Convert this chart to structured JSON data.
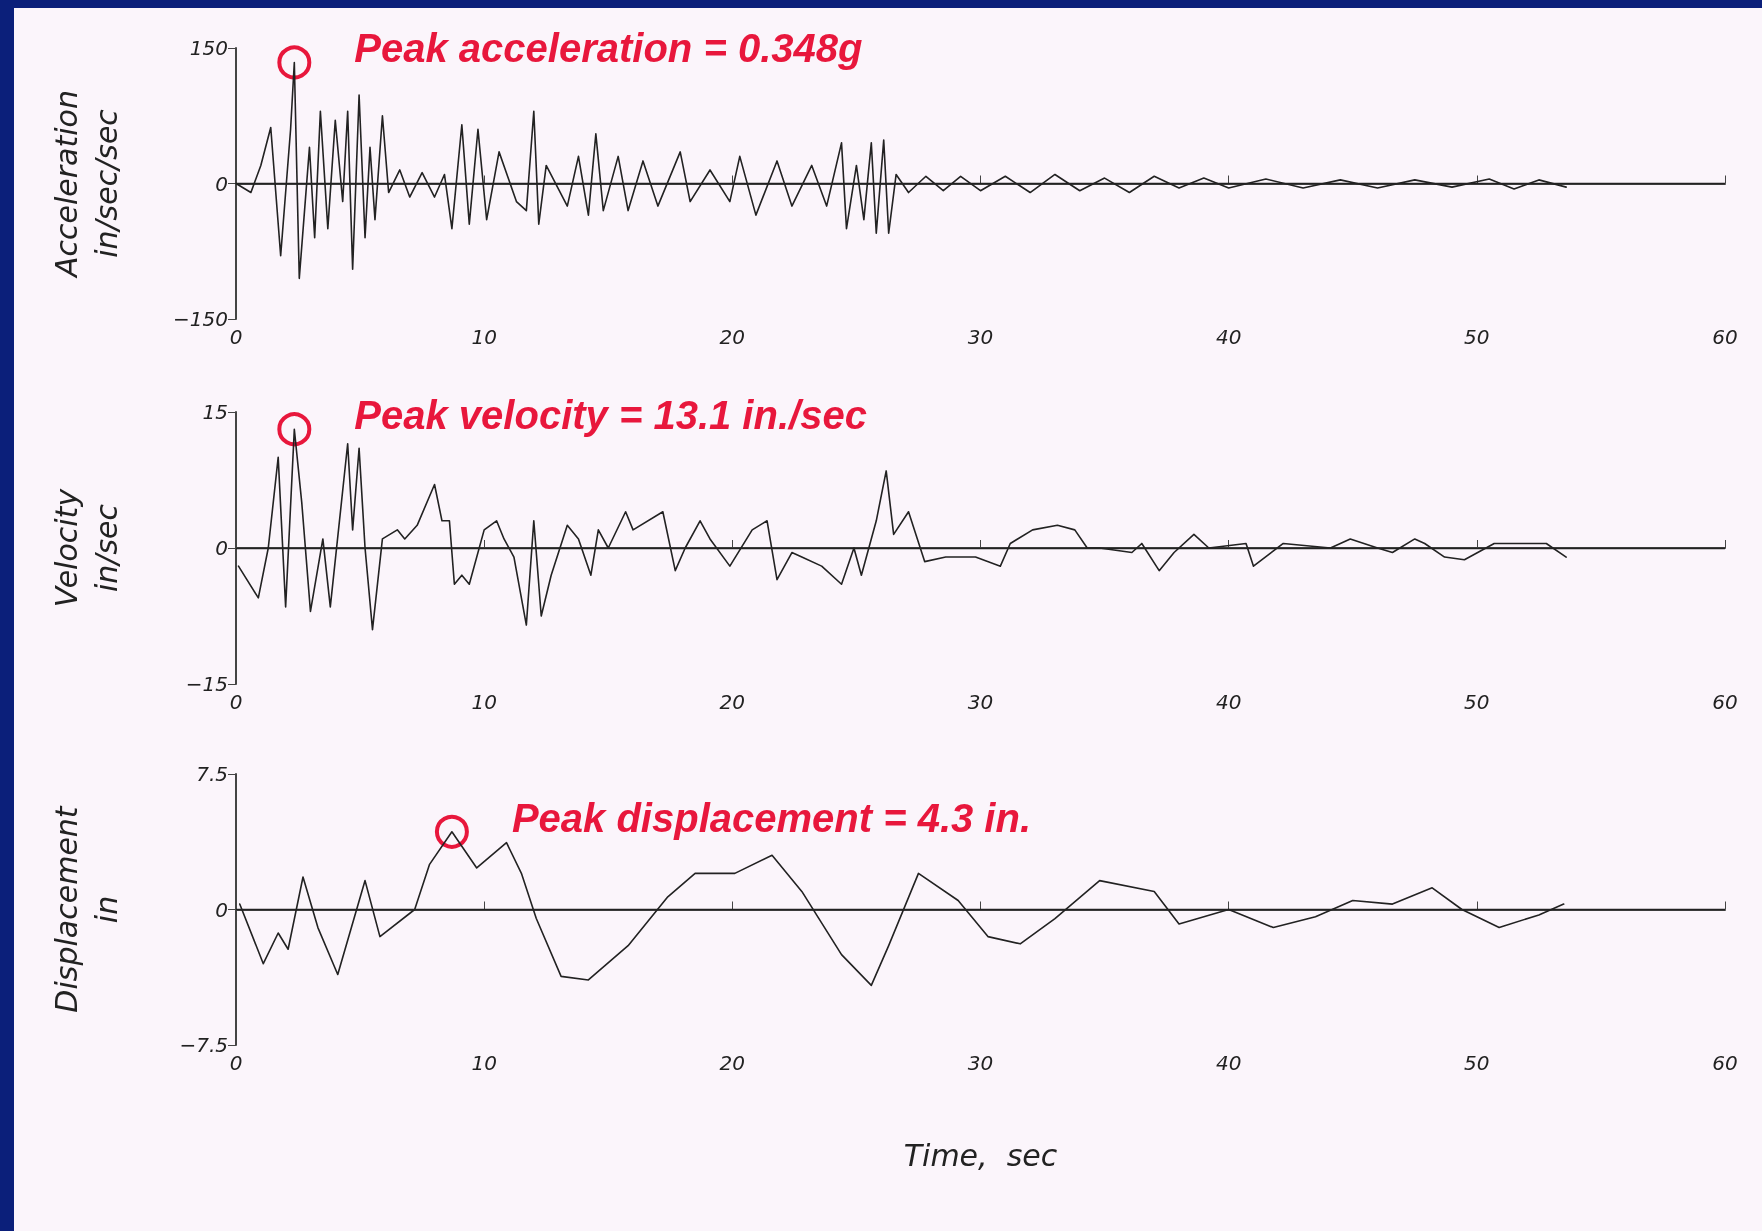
{
  "chart_data": [
    {
      "type": "line",
      "ylabel": "Acceleration\nin/sec/sec",
      "xlim": [
        0,
        60
      ],
      "xticks": [
        0,
        10,
        20,
        30,
        40,
        50,
        60
      ],
      "ylim": [
        -150,
        150
      ],
      "yticks": [
        -150,
        0,
        150
      ],
      "grid": false,
      "marker": "none",
      "line_style": "solid",
      "ref_lines": [
        {
          "axis": "y",
          "value": 0,
          "label": null,
          "color": "#222222"
        }
      ],
      "annotations": [
        "Peak acceleration = 0.348g"
      ],
      "series": [
        {
          "color": "#222222",
          "x": [
            0,
            0.6,
            1.0,
            1.4,
            1.8,
            2.2,
            2.35,
            2.55,
            2.96,
            3.17,
            3.4,
            3.7,
            4.0,
            4.3,
            4.5,
            4.7,
            4.96,
            5.2,
            5.4,
            5.6,
            5.9,
            6.15,
            6.6,
            7.0,
            7.5,
            8.0,
            8.4,
            8.7,
            9.1,
            9.4,
            9.75,
            10.1,
            10.6,
            11.3,
            11.7,
            12.0,
            12.2,
            12.5,
            13.35,
            13.8,
            14.2,
            14.5,
            14.8,
            15.4,
            15.8,
            16.4,
            17.0,
            17.9,
            18.3,
            19.1,
            19.9,
            20.3,
            20.95,
            21.8,
            22.4,
            23.2,
            23.8,
            24.4,
            24.6,
            25.0,
            25.3,
            25.6,
            25.8,
            26.1,
            26.3,
            26.6,
            27.1,
            27.8,
            28.5,
            29.2,
            30.0,
            31.0,
            32.0,
            33.0,
            34.0,
            35.0,
            36.0,
            37.0,
            38.0,
            39.0,
            40.0,
            41.5,
            43.0,
            44.5,
            46.0,
            47.5,
            49.0,
            50.5,
            51.5,
            52.5,
            53.6
          ],
          "values": [
            0,
            -10,
            20,
            62,
            -80,
            60,
            134,
            -105,
            40,
            -60,
            80,
            -50,
            70,
            -20,
            80,
            -95,
            98,
            -60,
            40,
            -40,
            75,
            -10,
            15,
            -15,
            12,
            -15,
            10,
            -50,
            65,
            -45,
            60,
            -40,
            35,
            -20,
            -30,
            80,
            -45,
            20,
            -25,
            30,
            -35,
            55,
            -30,
            30,
            -30,
            25,
            -25,
            35,
            -20,
            15,
            -20,
            30,
            -35,
            25,
            -25,
            20,
            -25,
            45,
            -50,
            20,
            -40,
            45,
            -55,
            48,
            -55,
            10,
            -10,
            8,
            -8,
            8,
            -8,
            8,
            -10,
            10,
            -8,
            6,
            -10,
            8,
            -5,
            6,
            -5,
            5,
            -5,
            4,
            -5,
            4,
            -4,
            5,
            -6,
            4,
            -4
          ]
        }
      ]
    },
    {
      "type": "line",
      "ylabel": "Velocity\nin/sec",
      "xlim": [
        0,
        60
      ],
      "xticks": [
        0,
        10,
        20,
        30,
        40,
        50,
        60
      ],
      "ylim": [
        -15,
        15
      ],
      "yticks": [
        -15,
        0,
        15
      ],
      "grid": false,
      "marker": "none",
      "line_style": "solid",
      "ref_lines": [
        {
          "axis": "y",
          "value": 0,
          "label": null,
          "color": "#222222"
        }
      ],
      "annotations": [
        "Peak velocity = 13.1 in./sec"
      ],
      "series": [
        {
          "color": "#222222",
          "x": [
            0.1,
            0.9,
            1.3,
            1.7,
            2.0,
            2.35,
            2.65,
            3.0,
            3.5,
            3.8,
            4.5,
            4.7,
            4.96,
            5.2,
            5.5,
            5.9,
            6.5,
            6.8,
            7.3,
            8.0,
            8.3,
            8.6,
            8.8,
            9.1,
            9.4,
            10.0,
            10.5,
            10.8,
            11.2,
            11.7,
            12.0,
            12.3,
            12.7,
            13.35,
            13.8,
            14.3,
            14.6,
            15.0,
            15.7,
            16.0,
            17.2,
            17.7,
            18.1,
            18.7,
            19.1,
            19.9,
            20.8,
            21.4,
            21.8,
            22.4,
            22.8,
            23.6,
            24.4,
            24.9,
            25.2,
            25.8,
            26.2,
            26.5,
            27.1,
            27.75,
            28.6,
            29.8,
            30.8,
            31.2,
            32.1,
            33.1,
            33.8,
            34.3,
            34.8,
            36.1,
            36.5,
            37.2,
            37.8,
            38.6,
            39.2,
            40.7,
            41.0,
            42.2,
            44.1,
            44.9,
            46.0,
            46.6,
            47.5,
            47.9,
            48.7,
            49.5,
            50.7,
            52.8,
            53.6
          ],
          "values": [
            -2,
            -5.5,
            0,
            10,
            -6.5,
            13.1,
            5,
            -7,
            1,
            -6.5,
            11.5,
            2,
            11,
            0,
            -9,
            1,
            2,
            1,
            2.5,
            7,
            3,
            3,
            -4,
            -3,
            -4,
            2,
            3,
            1,
            -1,
            -8.5,
            3,
            -7.5,
            -3,
            2.5,
            1,
            -3,
            2,
            0,
            4,
            2,
            4,
            -2.5,
            0,
            3,
            1,
            -2,
            2,
            3,
            -3.5,
            -0.5,
            -1,
            -2,
            -4,
            0,
            -3,
            3,
            8.5,
            1.5,
            4,
            -1.5,
            -1,
            -1,
            -2,
            0.5,
            2,
            2.5,
            2,
            0,
            0,
            -0.5,
            0.5,
            -2.5,
            -0.5,
            1.5,
            0,
            0.5,
            -2,
            0.5,
            0,
            1,
            0,
            -0.5,
            1,
            0.5,
            -1,
            -1.3,
            0.5,
            0.5,
            -1
          ]
        }
      ]
    },
    {
      "type": "line",
      "ylabel": "Displacement\nin",
      "xlabel": "Time,  sec",
      "xlim": [
        0,
        60
      ],
      "xticks": [
        0,
        10,
        20,
        30,
        40,
        50,
        60
      ],
      "ylim": [
        -7.5,
        7.5
      ],
      "yticks": [
        -7.5,
        0,
        7.5
      ],
      "grid": false,
      "marker": "none",
      "line_style": "solid",
      "ref_lines": [
        {
          "axis": "y",
          "value": 0,
          "label": null,
          "color": "#222222"
        }
      ],
      "annotations": [
        "Peak displacement = 4.3 in."
      ],
      "series": [
        {
          "color": "#222222",
          "x": [
            0.15,
            1.1,
            1.7,
            2.1,
            2.7,
            3.3,
            4.1,
            5.2,
            5.8,
            7.2,
            7.8,
            8.7,
            9.7,
            10.9,
            11.5,
            12.1,
            13.1,
            14.2,
            15.8,
            17.4,
            18.5,
            20.1,
            21.6,
            22.8,
            24.4,
            25.6,
            26.3,
            27.5,
            29.1,
            30.3,
            31.6,
            33.0,
            34.8,
            37.0,
            38.0,
            40.0,
            41.8,
            43.5,
            45.0,
            46.6,
            48.2,
            49.4,
            50.9,
            52.5,
            53.5
          ],
          "values": [
            0.3,
            -3,
            -1.3,
            -2.2,
            1.8,
            -1,
            -3.6,
            1.6,
            -1.5,
            0,
            2.5,
            4.3,
            2.3,
            3.7,
            2,
            -0.5,
            -3.7,
            -3.9,
            -2,
            0.7,
            2,
            2,
            3,
            1,
            -2.5,
            -4.2,
            -2,
            2,
            0.5,
            -1.5,
            -1.9,
            -0.5,
            1.6,
            1,
            -0.8,
            0,
            -1,
            -0.4,
            0.5,
            0.3,
            1.2,
            0,
            -1,
            -0.3,
            0.3
          ]
        }
      ]
    }
  ]
}
